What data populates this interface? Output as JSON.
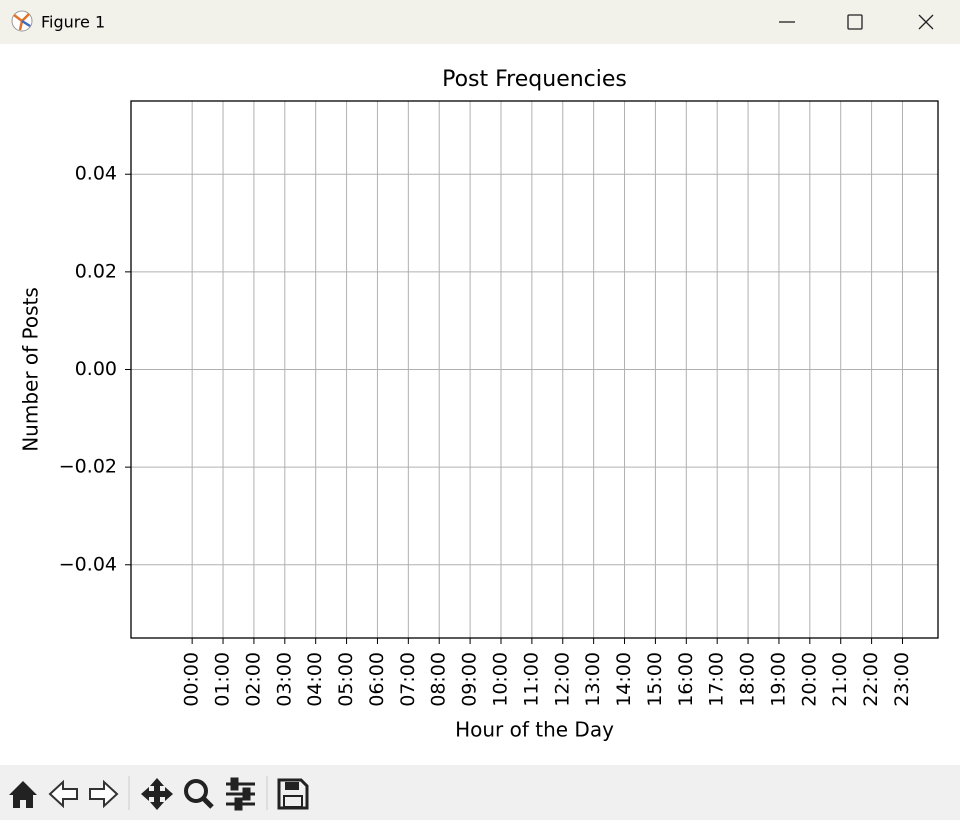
{
  "window": {
    "title": "Figure 1"
  },
  "chart_data": {
    "type": "line",
    "title": "Post Frequencies",
    "x_label": "Hour of the Day",
    "y_label": "Number of Posts",
    "categories": [
      "00:00",
      "01:00",
      "02:00",
      "03:00",
      "04:00",
      "05:00",
      "06:00",
      "07:00",
      "08:00",
      "09:00",
      "10:00",
      "11:00",
      "12:00",
      "13:00",
      "14:00",
      "15:00",
      "16:00",
      "17:00",
      "18:00",
      "19:00",
      "20:00",
      "21:00",
      "22:00",
      "23:00"
    ],
    "series": [],
    "xlim": [
      -1.98,
      24.15
    ],
    "ylim": [
      -0.055,
      0.055
    ],
    "yticks": [
      {
        "value": -0.04,
        "label": "−0.04"
      },
      {
        "value": -0.02,
        "label": "−0.02"
      },
      {
        "value": 0,
        "label": "0.00"
      },
      0.02,
      0.04
    ],
    "grid": true
  }
}
